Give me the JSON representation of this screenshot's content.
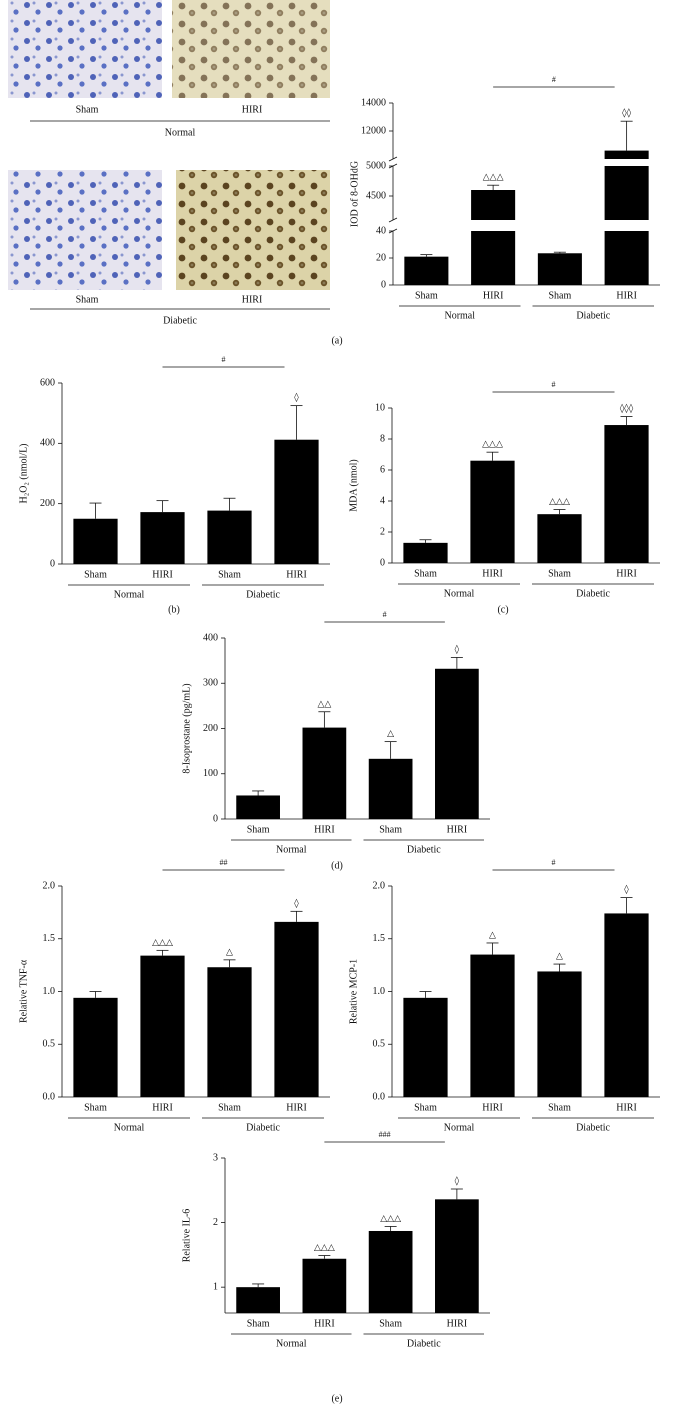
{
  "figure": {
    "images": [
      {
        "labels": [
          "Sham",
          "HIRI"
        ],
        "group": "Normal"
      },
      {
        "labels": [
          "Sham",
          "HIRI"
        ],
        "group": "Diabetic"
      }
    ],
    "panel_labels": [
      "(a)",
      "(b)",
      "(c)",
      "(d)",
      "(e)"
    ]
  },
  "chart_data": [
    {
      "type": "bar",
      "ylabel": "IOD of 8-OHdG",
      "color": "#000000",
      "categories": [
        "Sham",
        "HIRI",
        "Sham",
        "HIRI"
      ],
      "groups": [
        "Normal",
        "Diabetic"
      ],
      "values": [
        21,
        4600,
        23.5,
        10600
      ],
      "errors": [
        1.5,
        80,
        0.8,
        2100
      ],
      "value_labels": [
        null,
        "△△△",
        null,
        "◊◊"
      ],
      "significance": "#",
      "ylim_segments": [
        {
          "ylim": [
            0,
            40
          ],
          "yticks": [
            0,
            20,
            40
          ]
        },
        {
          "ylim": [
            4100,
            5000
          ],
          "yticks": [
            4500,
            5000
          ]
        },
        {
          "ylim": [
            10000,
            14000
          ],
          "yticks": [
            12000,
            14000
          ]
        }
      ]
    },
    {
      "type": "bar",
      "ylabel": "H₂O₂ (nmol/L)",
      "color": "#000000",
      "categories": [
        "Sham",
        "HIRI",
        "Sham",
        "HIRI"
      ],
      "groups": [
        "Normal",
        "Diabetic"
      ],
      "values": [
        150,
        172,
        177,
        412
      ],
      "errors": [
        52,
        38,
        41,
        113
      ],
      "value_labels": [
        null,
        null,
        null,
        "◊"
      ],
      "significance": "#",
      "ylim": [
        0,
        600
      ],
      "yticks": [
        0,
        200,
        400,
        600
      ]
    },
    {
      "type": "bar",
      "ylabel": "MDA (nmol)",
      "color": "#000000",
      "categories": [
        "Sham",
        "HIRI",
        "Sham",
        "HIRI"
      ],
      "groups": [
        "Normal",
        "Diabetic"
      ],
      "values": [
        1.3,
        6.6,
        3.15,
        8.9
      ],
      "errors": [
        0.2,
        0.55,
        0.3,
        0.55
      ],
      "value_labels": [
        null,
        "△△△",
        "△△△",
        "◊◊◊"
      ],
      "significance": "#",
      "ylim": [
        0,
        10
      ],
      "yticks": [
        0,
        2,
        4,
        6,
        8,
        10
      ]
    },
    {
      "type": "bar",
      "ylabel": "8-Isoprostane (pg/mL)",
      "color": "#000000",
      "categories": [
        "Sham",
        "HIRI",
        "Sham",
        "HIRI"
      ],
      "groups": [
        "Normal",
        "Diabetic"
      ],
      "values": [
        52,
        202,
        133,
        332
      ],
      "errors": [
        10,
        35,
        38,
        25
      ],
      "value_labels": [
        null,
        "△△",
        "△",
        "◊"
      ],
      "significance": "#",
      "ylim": [
        0,
        400
      ],
      "yticks": [
        0,
        100,
        200,
        300,
        400
      ]
    },
    {
      "type": "bar",
      "ylabel": "Relative TNF-α",
      "color": "#000000",
      "categories": [
        "Sham",
        "HIRI",
        "Sham",
        "HIRI"
      ],
      "groups": [
        "Normal",
        "Diabetic"
      ],
      "values": [
        0.94,
        1.34,
        1.23,
        1.66
      ],
      "errors": [
        0.06,
        0.05,
        0.07,
        0.1
      ],
      "value_labels": [
        null,
        "△△△",
        "△",
        "◊"
      ],
      "significance": "##",
      "ylim": [
        0,
        2
      ],
      "yticks": [
        {
          "value": 0,
          "label": "0.0"
        },
        {
          "value": 0.5,
          "label": "0.5"
        },
        {
          "value": 1,
          "label": "1.0"
        },
        {
          "value": 1.5,
          "label": "1.5"
        },
        {
          "value": 2,
          "label": "2.0"
        }
      ]
    },
    {
      "type": "bar",
      "ylabel": "Relative MCP-1",
      "color": "#000000",
      "categories": [
        "Sham",
        "HIRI",
        "Sham",
        "HIRI"
      ],
      "groups": [
        "Normal",
        "Diabetic"
      ],
      "values": [
        0.94,
        1.35,
        1.19,
        1.74
      ],
      "errors": [
        0.06,
        0.11,
        0.07,
        0.15
      ],
      "value_labels": [
        null,
        "△",
        "△",
        "◊"
      ],
      "significance": "#",
      "ylim": [
        0,
        2
      ],
      "yticks": [
        {
          "value": 0,
          "label": "0.0"
        },
        {
          "value": 0.5,
          "label": "0.5"
        },
        {
          "value": 1,
          "label": "1.0"
        },
        {
          "value": 1.5,
          "label": "1.5"
        },
        {
          "value": 2,
          "label": "2.0"
        }
      ]
    },
    {
      "type": "bar",
      "ylabel": "Relative IL-6",
      "color": "#000000",
      "categories": [
        "Sham",
        "HIRI",
        "Sham",
        "HIRI"
      ],
      "groups": [
        "Normal",
        "Diabetic"
      ],
      "values": [
        1.0,
        1.44,
        1.87,
        2.36
      ],
      "errors": [
        0.05,
        0.05,
        0.07,
        0.16
      ],
      "value_labels": [
        null,
        "△△△",
        "△△△",
        "◊"
      ],
      "significance": "###",
      "ylim": [
        0.6,
        3
      ],
      "yticks": [
        1,
        2,
        3
      ]
    }
  ]
}
